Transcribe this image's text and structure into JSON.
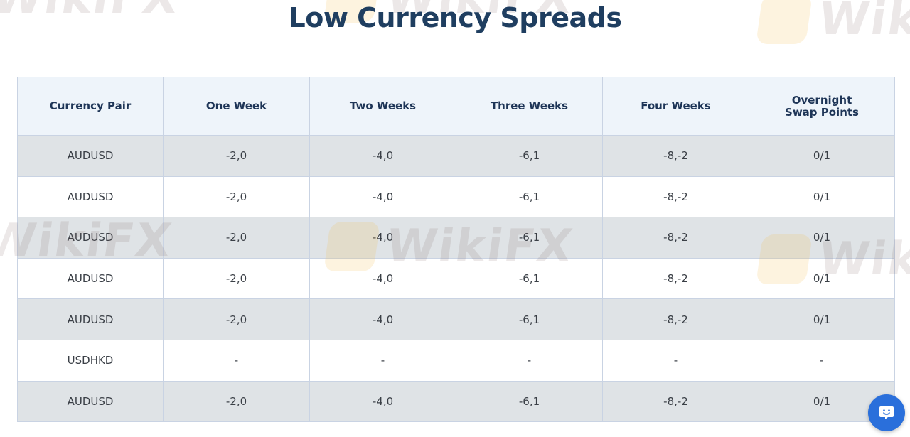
{
  "page": {
    "title": "Low Currency Spreads",
    "watermark_text": "WikiFX"
  },
  "table": {
    "headers": [
      "Currency Pair",
      "One Week",
      "Two Weeks",
      "Three Weeks",
      "Four Weeks",
      "Overnight Swap Points"
    ],
    "rows": [
      [
        "AUDUSD",
        "-2,0",
        "-4,0",
        "-6,1",
        "-8,-2",
        "0/1"
      ],
      [
        "AUDUSD",
        "-2,0",
        "-4,0",
        "-6,1",
        "-8,-2",
        "0/1"
      ],
      [
        "AUDUSD",
        "-2,0",
        "-4,0",
        "-6,1",
        "-8,-2",
        "0/1"
      ],
      [
        "AUDUSD",
        "-2,0",
        "-4,0",
        "-6,1",
        "-8,-2",
        "0/1"
      ],
      [
        "AUDUSD",
        "-2,0",
        "-4,0",
        "-6,1",
        "-8,-2",
        "0/1"
      ],
      [
        "USDHKD",
        "-",
        "-",
        "-",
        "-",
        "-"
      ],
      [
        "AUDUSD",
        "-2,0",
        "-4,0",
        "-6,1",
        "-8,-2",
        "0/1"
      ]
    ]
  },
  "chat_widget": {
    "icon": "chat-bubble-smile-icon"
  },
  "colors": {
    "title": "#1f3e60",
    "header_bg": "#eef4fa",
    "row_shaded": "#dfe3e6",
    "chat_button": "#2a6fdb"
  }
}
